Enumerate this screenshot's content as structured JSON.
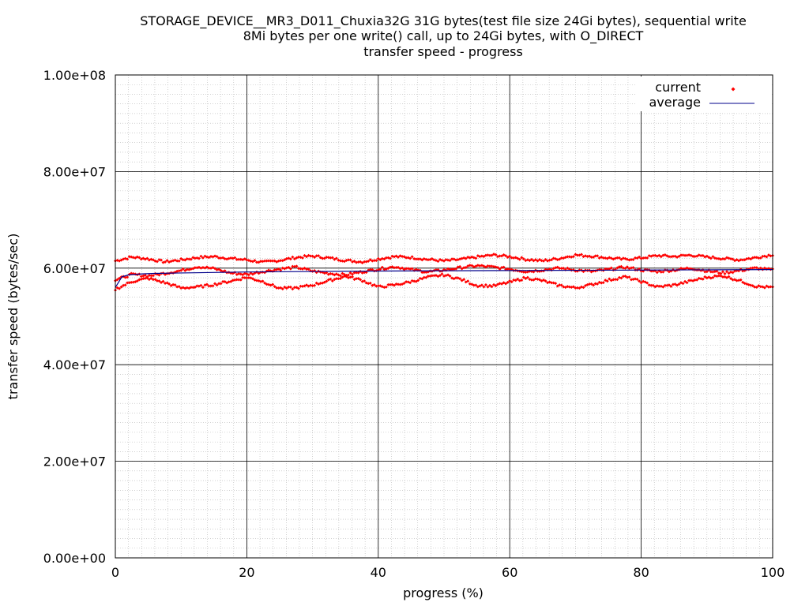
{
  "chart_data": {
    "type": "scatter",
    "title": [
      "STORAGE_DEVICE__MR3_D011_Chuxia32G 31G bytes(test file size 24Gi bytes), sequential write",
      "8Mi bytes per one write() call, up to 24Gi bytes, with O_DIRECT",
      "transfer speed - progress"
    ],
    "xlabel": "progress (%)",
    "ylabel": "transfer speed (bytes/sec)",
    "xlim": [
      0,
      100
    ],
    "ylim": [
      0,
      100000000
    ],
    "x_ticks": [
      0,
      20,
      40,
      60,
      80,
      100
    ],
    "x_tick_labels": [
      "0",
      "20",
      "40",
      "60",
      "80",
      "100"
    ],
    "y_ticks": [
      0,
      20000000,
      40000000,
      60000000,
      80000000,
      100000000
    ],
    "y_tick_labels": [
      "0.00e+00",
      "2.00e+07",
      "4.00e+07",
      "6.00e+07",
      "8.00e+07",
      "1.00e+08"
    ],
    "grid": true,
    "minor_grid": true,
    "legend_position": "top-right",
    "series": [
      {
        "name": "current",
        "style": "points",
        "color": "#ff0000",
        "x": [
          0,
          2.5,
          5,
          7.5,
          10,
          12.5,
          15,
          17.5,
          20,
          22.5,
          25,
          27.5,
          30,
          32.5,
          35,
          37.5,
          40,
          42.5,
          45,
          47.5,
          50,
          52.5,
          55,
          57.5,
          60,
          62.5,
          65,
          67.5,
          70,
          72.5,
          75,
          77.5,
          80,
          82.5,
          85,
          87.5,
          90,
          92.5,
          95,
          97.5,
          100
        ],
        "y_band_high": [
          61500000,
          62300000,
          61900000,
          61300000,
          61700000,
          62200000,
          62400000,
          62000000,
          61700000,
          61200000,
          61600000,
          62200000,
          62500000,
          62100000,
          61600000,
          61300000,
          61900000,
          62400000,
          62200000,
          61800000,
          61500000,
          61800000,
          62300000,
          62700000,
          62400000,
          61800000,
          61500000,
          62000000,
          62700000,
          62500000,
          62100000,
          61800000,
          62100000,
          62600000,
          62400000,
          62700000,
          62300000,
          62000000,
          61700000,
          62200000,
          62800000
        ],
        "y_band_mid": [
          57500000,
          58700000,
          58400000,
          58900000,
          59500000,
          60300000,
          59900000,
          59000000,
          58700000,
          59300000,
          59800000,
          60200000,
          59400000,
          58900000,
          58600000,
          59200000,
          59800000,
          60300000,
          59700000,
          59200000,
          59600000,
          60100000,
          60500000,
          60200000,
          59800000,
          59300000,
          59600000,
          60000000,
          59600000,
          59300000,
          59700000,
          60200000,
          59600000,
          59300000,
          59600000,
          60000000,
          59400000,
          59000000,
          59500000,
          60000000,
          59600000
        ],
        "y_band_low": [
          55600000,
          57200000,
          57900000,
          57000000,
          55900000,
          56100000,
          56600000,
          57300000,
          58100000,
          57200000,
          55800000,
          55900000,
          56500000,
          57400000,
          58300000,
          57500000,
          56100000,
          56500000,
          57200000,
          58100000,
          58600000,
          57700000,
          56400000,
          56300000,
          57100000,
          58000000,
          57400000,
          56400000,
          55900000,
          56600000,
          57500000,
          58200000,
          57200000,
          56100000,
          56500000,
          57300000,
          58100000,
          58400000,
          57400000,
          56200000,
          56000000
        ]
      },
      {
        "name": "average",
        "style": "line",
        "color": "#00008b",
        "x": [
          0,
          1,
          2,
          4,
          6,
          10,
          20,
          40,
          60,
          80,
          100
        ],
        "y": [
          56000000,
          58200000,
          58600000,
          58800000,
          58900000,
          59000000,
          59200000,
          59400000,
          59500000,
          59600000,
          59700000
        ]
      }
    ]
  }
}
